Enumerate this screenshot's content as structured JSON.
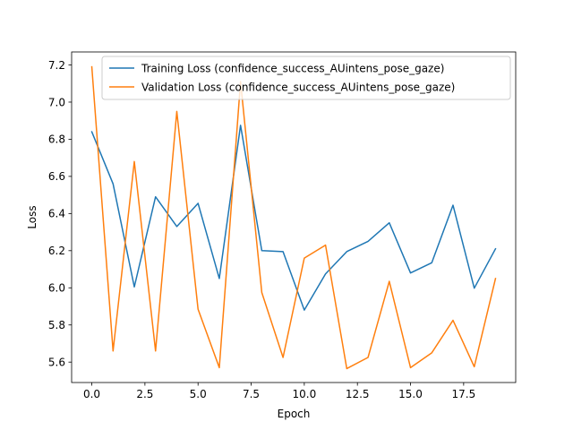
{
  "chart_data": {
    "type": "line",
    "title": "",
    "xlabel": "Epoch",
    "ylabel": "Loss",
    "xlim": [
      -0.95,
      19.95
    ],
    "ylim": [
      5.49,
      7.27
    ],
    "xticks": [
      0,
      2.5,
      5,
      7.5,
      10,
      12.5,
      15,
      17.5
    ],
    "xtick_labels": [
      "0.0",
      "2.5",
      "5.0",
      "7.5",
      "10.0",
      "12.5",
      "15.0",
      "17.5"
    ],
    "yticks": [
      5.6,
      5.8,
      6.0,
      6.2,
      6.4,
      6.6,
      6.8,
      7.0,
      7.2
    ],
    "ytick_labels": [
      "5.6",
      "5.8",
      "6.0",
      "6.2",
      "6.4",
      "6.6",
      "6.8",
      "7.0",
      "7.2"
    ],
    "grid": false,
    "legend_position": "top-right",
    "x": [
      0,
      1,
      2,
      3,
      4,
      5,
      6,
      7,
      8,
      9,
      10,
      11,
      12,
      13,
      14,
      15,
      16,
      17,
      18,
      19
    ],
    "series": [
      {
        "name": "Training Loss (confidence_success_AUintens_pose_gaze)",
        "color": "#1f77b4",
        "values": [
          6.84,
          6.56,
          6.005,
          6.49,
          6.33,
          6.455,
          6.05,
          6.875,
          6.2,
          6.195,
          5.88,
          6.075,
          6.195,
          6.25,
          6.35,
          6.08,
          6.135,
          6.445,
          5.998,
          6.21
        ]
      },
      {
        "name": "Validation Loss (confidence_success_AUintens_pose_gaze)",
        "color": "#ff7f0e",
        "values": [
          7.19,
          5.66,
          6.68,
          5.66,
          6.95,
          5.885,
          5.57,
          7.11,
          5.975,
          5.625,
          6.16,
          6.23,
          5.565,
          5.625,
          6.035,
          5.57,
          5.65,
          5.825,
          5.575,
          6.05
        ]
      }
    ]
  }
}
